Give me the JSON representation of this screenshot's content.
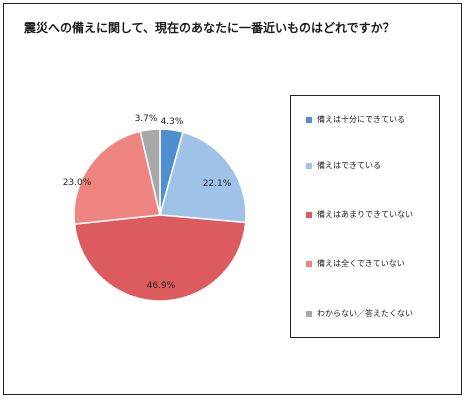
{
  "chart_data": {
    "type": "pie",
    "title": "震災への備えに関して、現在のあなたに一番近いものはどれですか？",
    "slices": [
      {
        "name": "備えは十分にできている",
        "value": 4.3,
        "label": "4.3%",
        "color": "#4f8fd0"
      },
      {
        "name": "備えはできている",
        "value": 22.1,
        "label": "22.1%",
        "color": "#9fc3e6"
      },
      {
        "name": "備えはあまりできていない",
        "value": 46.9,
        "label": "46.9%",
        "color": "#dc5b5e"
      },
      {
        "name": "備えは全くできていない",
        "value": 23.0,
        "label": "23.0%",
        "color": "#ee8581"
      },
      {
        "name": "わからない／答えたくない",
        "value": 3.7,
        "label": "3.7%",
        "color": "#a8a8a8"
      }
    ],
    "legend_position": "right"
  }
}
